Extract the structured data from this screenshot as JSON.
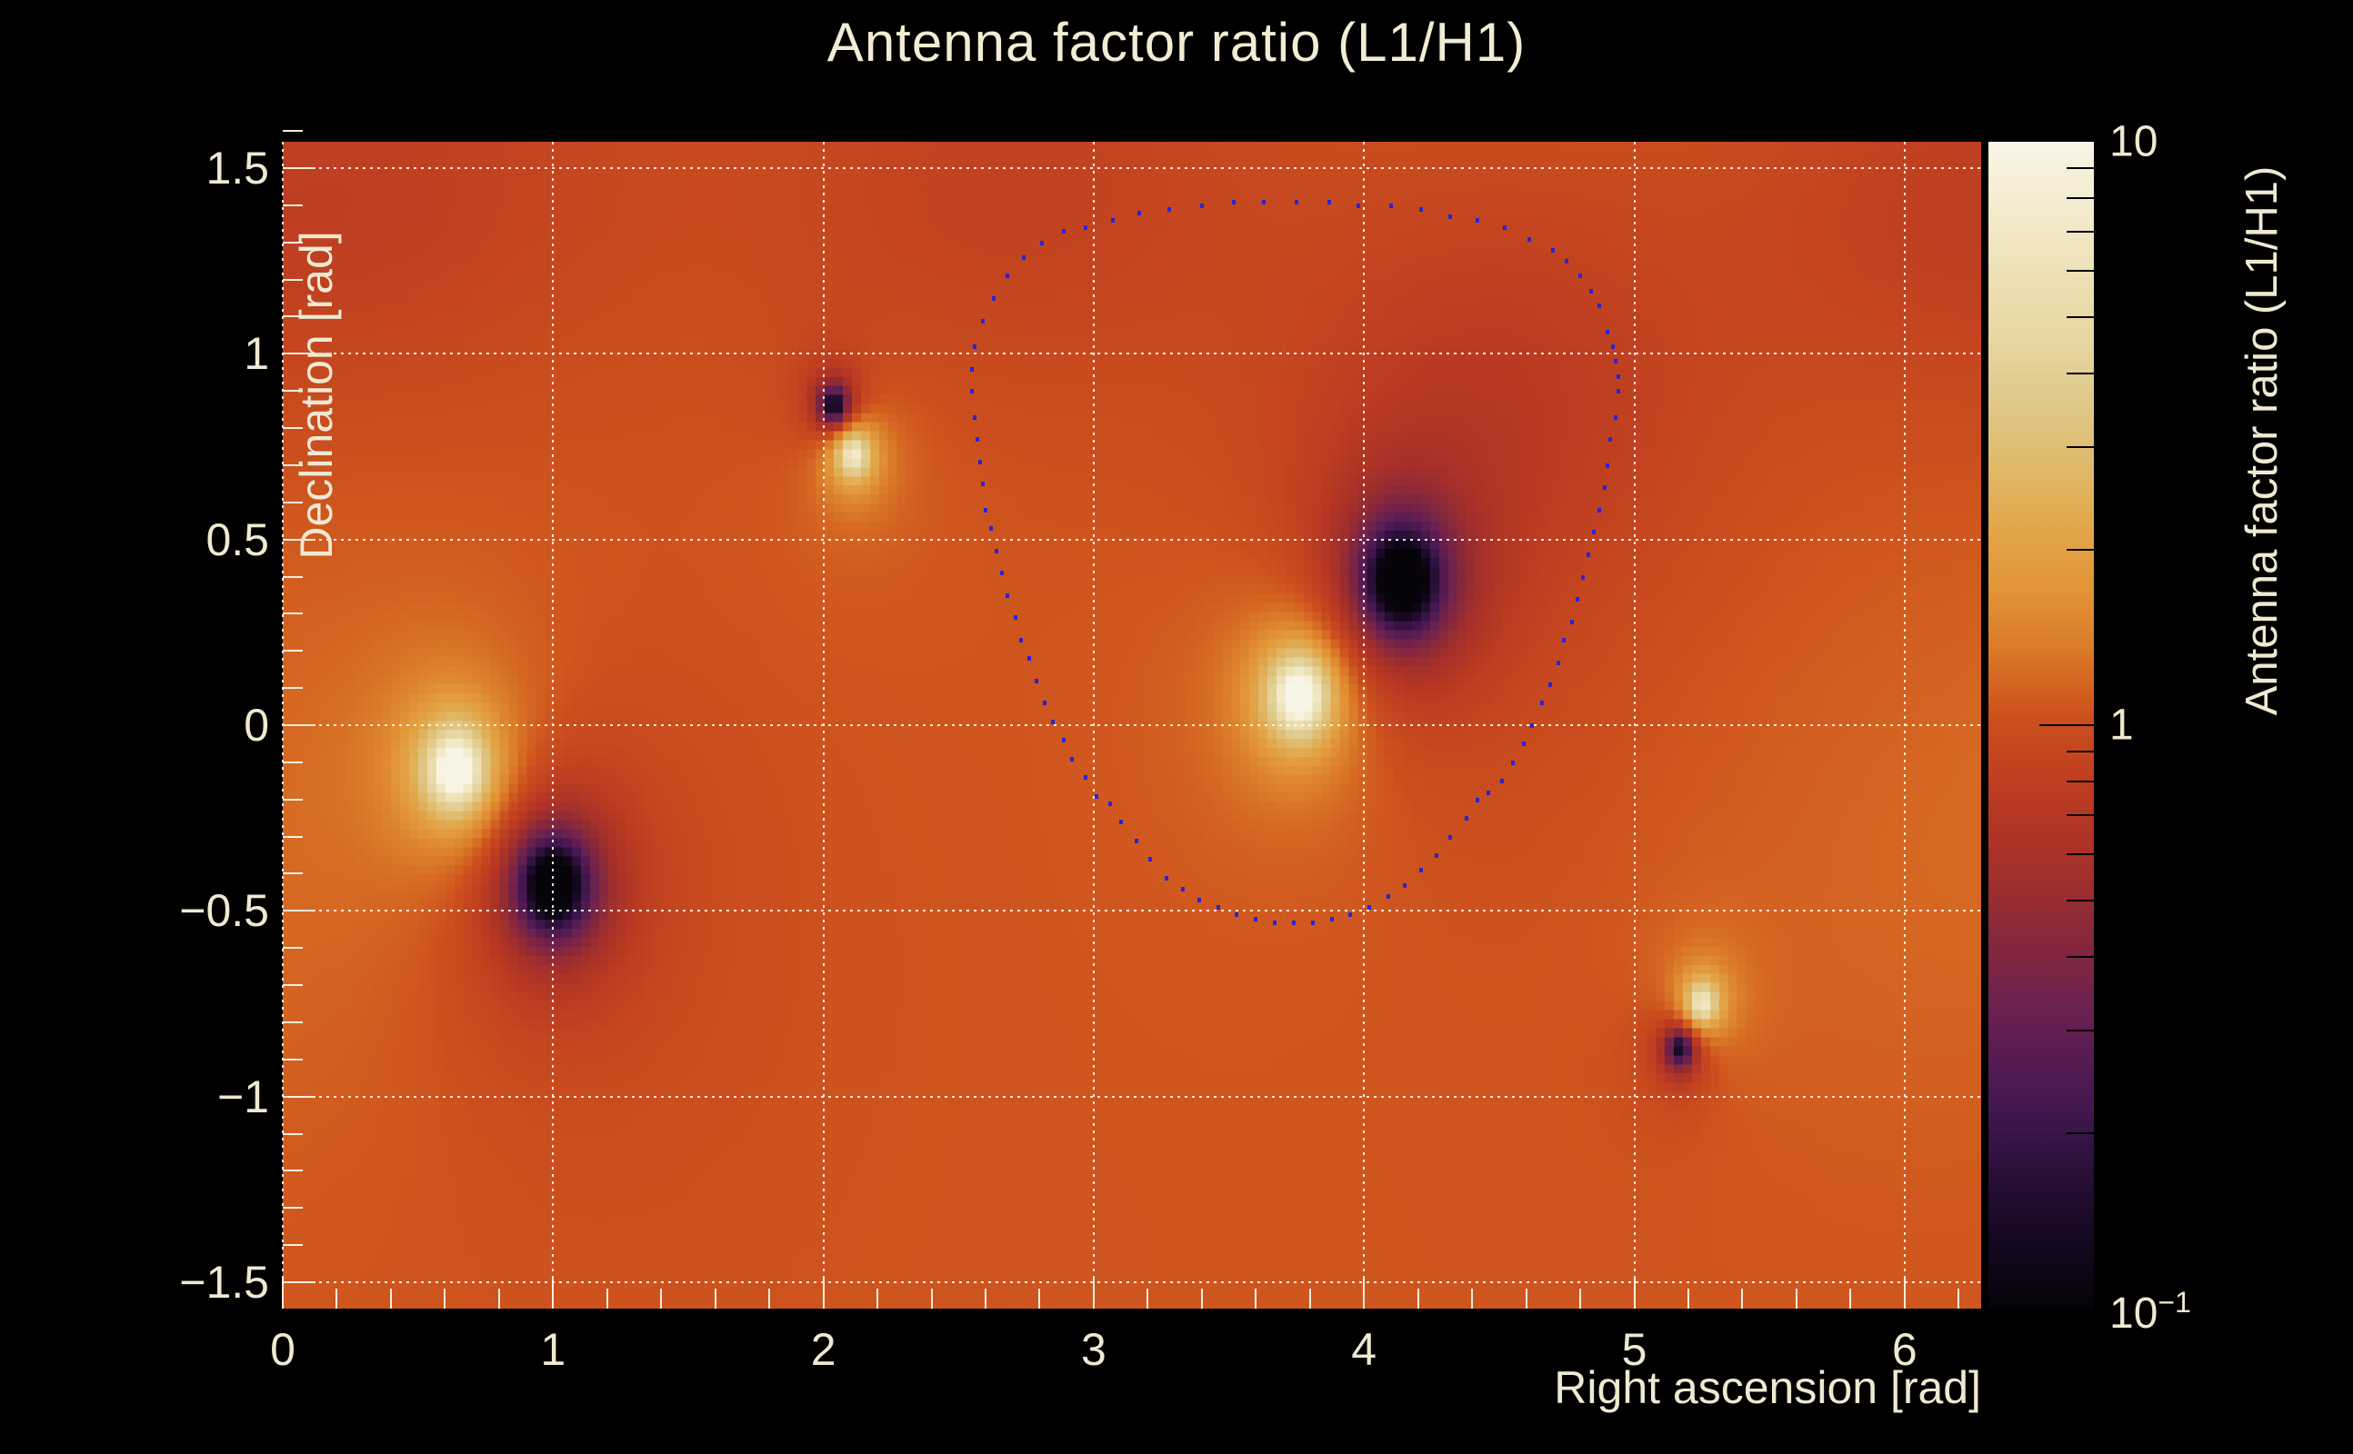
{
  "title": "Antenna factor ratio (L1/H1)",
  "colors": {
    "background": "#000000",
    "text": "#efe9d1",
    "grid": "#fffcee",
    "tick": "#f5efdd",
    "contour_dot": "#2525d8",
    "colorbar_tick": "#000000"
  },
  "chart_data": {
    "type": "heatmap",
    "title": "Antenna factor ratio (L1/H1)",
    "xlabel": "Right ascension [rad]",
    "ylabel": "Declination [rad]",
    "x_range": [
      0,
      6.2832
    ],
    "y_range": [
      -1.5708,
      1.5708
    ],
    "x_major_ticks": [
      0,
      1,
      2,
      3,
      4,
      5,
      6
    ],
    "x_tick_labels": [
      "0",
      "1",
      "2",
      "3",
      "4",
      "5",
      "6"
    ],
    "x_minor_step": 0.2,
    "y_major_ticks": [
      1.5,
      1.0,
      0.5,
      0.0,
      -0.5,
      -1.0,
      -1.5
    ],
    "y_tick_labels": [
      "1.5",
      "1",
      "0.5",
      "0",
      "−0.5",
      "−1",
      "−1.5"
    ],
    "y_minor_step": 0.1,
    "grid": "dotted, at every major tick, both axes",
    "value_scale": "log10",
    "value_range": [
      0.1,
      10
    ],
    "colorbar": {
      "label": "Antenna factor ratio (L1/H1)",
      "scale": "log",
      "min": 0.1,
      "max": 10,
      "major_tick_values": [
        10,
        1,
        0.1
      ],
      "label_top": "10",
      "label_mid": "1",
      "label_bottom_base": "10",
      "label_bottom_exp": "−1",
      "minor_tick_values": [
        9,
        8,
        7,
        6,
        5,
        4,
        3,
        2,
        0.9,
        0.8,
        0.7,
        0.6,
        0.5,
        0.4,
        0.3,
        0.2
      ]
    },
    "colormap_stops": [
      [
        0.0,
        "#060309"
      ],
      [
        0.06,
        "#150820"
      ],
      [
        0.1,
        "#230d31"
      ],
      [
        0.14,
        "#331343"
      ],
      [
        0.175,
        "#441850"
      ],
      [
        0.215,
        "#571b52"
      ],
      [
        0.255,
        "#6a2150"
      ],
      [
        0.295,
        "#7d2542"
      ],
      [
        0.335,
        "#8f2a36"
      ],
      [
        0.37,
        "#a22f2c"
      ],
      [
        0.4,
        "#ad3326"
      ],
      [
        0.435,
        "#b93a22"
      ],
      [
        0.475,
        "#c4451f"
      ],
      [
        0.505,
        "#cb4f1e"
      ],
      [
        0.52,
        "#d1591f"
      ],
      [
        0.565,
        "#da7a28"
      ],
      [
        0.62,
        "#e29638"
      ],
      [
        0.67,
        "#e2a74b"
      ],
      [
        0.72,
        "#e0b969"
      ],
      [
        0.775,
        "#dfc888"
      ],
      [
        0.825,
        "#e6d59e"
      ],
      [
        0.88,
        "#ecdfb2"
      ],
      [
        0.93,
        "#f2e9c9"
      ],
      [
        0.97,
        "#f6f0d9"
      ],
      [
        1.0,
        "#f8f4e6"
      ]
    ],
    "field_model": {
      "description": "log10(ratio) = base + sum of Lorentzian peaks a*s^2/(d^2+s^2) (d = angular distance, RA wrapped) + broad Gaussians",
      "base": 0.03,
      "bins_x": 188,
      "bins_y": 129,
      "features": [
        {
          "name": "bright-peak-1",
          "ra": 0.64,
          "dec": -0.12,
          "a": 1.35,
          "s": 0.1,
          "peak_ratio": ">10"
        },
        {
          "name": "dark-null-1",
          "ra": 1.0,
          "dec": -0.43,
          "a": -1.5,
          "s": 0.12,
          "peak_ratio": "<0.1"
        },
        {
          "name": "dark-null-2",
          "ra": 2.04,
          "dec": 0.86,
          "a": -1.15,
          "s": 0.05,
          "peak_ratio": "~0.1"
        },
        {
          "name": "bright-peak-2",
          "ra": 2.11,
          "dec": 0.73,
          "a": 1.0,
          "s": 0.065,
          "peak_ratio": "~10"
        },
        {
          "name": "bright-peak-3",
          "ra": 3.76,
          "dec": 0.08,
          "a": 1.35,
          "s": 0.1,
          "peak_ratio": ">10"
        },
        {
          "name": "dark-null-3",
          "ra": 4.14,
          "dec": 0.39,
          "a": -1.5,
          "s": 0.13,
          "peak_ratio": "<0.1"
        },
        {
          "name": "bright-peak-4",
          "ra": 5.25,
          "dec": -0.75,
          "a": 0.95,
          "s": 0.06,
          "peak_ratio": "~9"
        },
        {
          "name": "dark-null-4",
          "ra": 5.17,
          "dec": -0.87,
          "a": -1.05,
          "s": 0.05,
          "peak_ratio": "~0.1"
        }
      ],
      "broad_terms": [
        {
          "ra": 2.7,
          "dec": 1.45,
          "sx": 0.9,
          "sy": 0.55,
          "a": -0.1
        },
        {
          "ra": 4.55,
          "dec": 0.9,
          "sx": 0.75,
          "sy": 0.55,
          "a": -0.12
        },
        {
          "ra": 0.6,
          "dec": 1.5,
          "sx": 0.9,
          "sy": 0.6,
          "a": -0.08
        },
        {
          "ra": 6.1,
          "dec": 1.35,
          "sx": 0.8,
          "sy": 0.5,
          "a": -0.08
        },
        {
          "ra": 6.2,
          "dec": -0.4,
          "sx": 0.9,
          "sy": 0.8,
          "a": 0.05
        }
      ]
    },
    "contour": {
      "name": "sky-localization dotted contour",
      "marker": "small square dot",
      "color": "#2525d8",
      "points": [
        [
          3.01,
          -0.19
        ],
        [
          2.97,
          -0.14
        ],
        [
          2.92,
          -0.09
        ],
        [
          2.89,
          -0.04
        ],
        [
          2.85,
          0.01
        ],
        [
          2.82,
          0.06
        ],
        [
          2.79,
          0.12
        ],
        [
          2.76,
          0.18
        ],
        [
          2.73,
          0.23
        ],
        [
          2.71,
          0.29
        ],
        [
          2.68,
          0.35
        ],
        [
          2.66,
          0.41
        ],
        [
          2.64,
          0.47
        ],
        [
          2.62,
          0.53
        ],
        [
          2.6,
          0.58
        ],
        [
          2.59,
          0.65
        ],
        [
          2.58,
          0.71
        ],
        [
          2.57,
          0.77
        ],
        [
          2.56,
          0.83
        ],
        [
          2.55,
          0.9
        ],
        [
          2.55,
          0.96
        ],
        [
          2.56,
          1.02
        ],
        [
          2.59,
          1.09
        ],
        [
          2.63,
          1.15
        ],
        [
          2.68,
          1.21
        ],
        [
          2.74,
          1.26
        ],
        [
          2.81,
          1.3
        ],
        [
          2.89,
          1.33
        ],
        [
          2.97,
          1.34
        ],
        [
          3.07,
          1.36
        ],
        [
          3.17,
          1.38
        ],
        [
          3.28,
          1.39
        ],
        [
          3.4,
          1.4
        ],
        [
          3.52,
          1.41
        ],
        [
          3.63,
          1.41
        ],
        [
          3.75,
          1.41
        ],
        [
          3.87,
          1.41
        ],
        [
          3.98,
          1.4
        ],
        [
          4.1,
          1.4
        ],
        [
          4.21,
          1.39
        ],
        [
          4.32,
          1.37
        ],
        [
          4.42,
          1.36
        ],
        [
          4.52,
          1.34
        ],
        [
          4.61,
          1.31
        ],
        [
          4.7,
          1.28
        ],
        [
          4.75,
          1.25
        ],
        [
          4.8,
          1.21
        ],
        [
          4.84,
          1.17
        ],
        [
          4.87,
          1.13
        ],
        [
          4.9,
          1.06
        ],
        [
          4.92,
          1.02
        ],
        [
          4.93,
          0.98
        ],
        [
          4.94,
          0.94
        ],
        [
          4.94,
          0.9
        ],
        [
          4.93,
          0.83
        ],
        [
          4.91,
          0.77
        ],
        [
          4.9,
          0.7
        ],
        [
          4.89,
          0.64
        ],
        [
          4.87,
          0.58
        ],
        [
          4.85,
          0.52
        ],
        [
          4.83,
          0.46
        ],
        [
          4.81,
          0.4
        ],
        [
          4.79,
          0.34
        ],
        [
          4.77,
          0.28
        ],
        [
          4.74,
          0.23
        ],
        [
          4.72,
          0.17
        ],
        [
          4.69,
          0.11
        ],
        [
          4.66,
          0.06
        ],
        [
          4.62,
          0.0
        ],
        [
          4.59,
          -0.05
        ],
        [
          4.55,
          -0.1
        ],
        [
          4.51,
          -0.15
        ],
        [
          4.46,
          -0.18
        ],
        [
          4.42,
          -0.2
        ],
        [
          4.38,
          -0.25
        ],
        [
          4.32,
          -0.3
        ],
        [
          4.27,
          -0.35
        ],
        [
          4.21,
          -0.39
        ],
        [
          4.15,
          -0.43
        ],
        [
          4.09,
          -0.46
        ],
        [
          4.02,
          -0.49
        ],
        [
          3.95,
          -0.51
        ],
        [
          3.88,
          -0.52
        ],
        [
          3.81,
          -0.53
        ],
        [
          3.74,
          -0.53
        ],
        [
          3.67,
          -0.53
        ],
        [
          3.6,
          -0.52
        ],
        [
          3.53,
          -0.51
        ],
        [
          3.46,
          -0.49
        ],
        [
          3.39,
          -0.47
        ],
        [
          3.33,
          -0.44
        ],
        [
          3.27,
          -0.41
        ],
        [
          3.21,
          -0.36
        ],
        [
          3.16,
          -0.31
        ],
        [
          3.1,
          -0.26
        ],
        [
          3.06,
          -0.21
        ]
      ]
    }
  }
}
